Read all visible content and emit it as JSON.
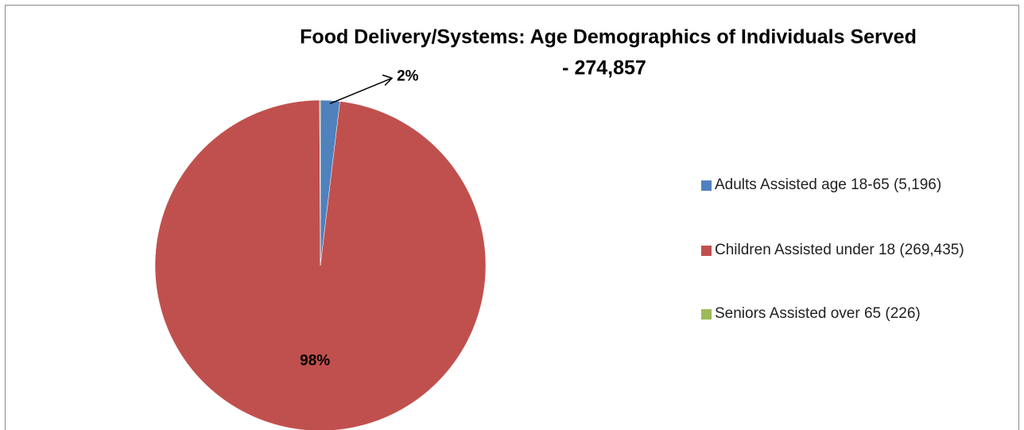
{
  "chart_data": {
    "type": "pie",
    "title": [
      "Food Delivery/Systems:  Age Demographics of Individuals Served",
      "- 274,857"
    ],
    "categories": [
      "Adults Assisted age 18-65 (5,196)",
      "Children Assisted under 18 (269,435)",
      "Seniors Assisted over 65 (226)"
    ],
    "values": [
      1.89,
      98.03,
      0.08
    ],
    "value_labels": [
      "2%",
      "98%",
      null
    ],
    "colors": [
      "#4f81bd",
      "#c0504d",
      "#9bbb59"
    ],
    "legend": "right"
  }
}
